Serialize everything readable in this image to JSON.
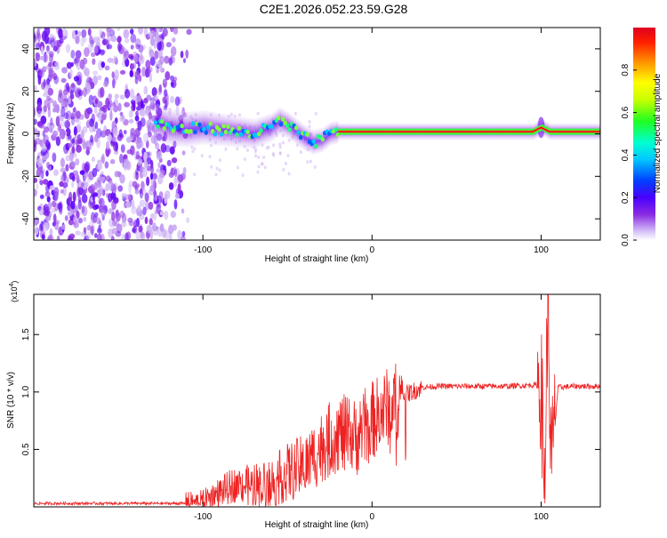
{
  "title": "C2E1.2026.052.23.59.G28",
  "chart_data": [
    {
      "type": "heatmap",
      "name": "spectrogram",
      "xlabel": "Height of straight line (km)",
      "ylabel": "Frequency (Hz)",
      "xlim": [
        -200,
        135
      ],
      "ylim": [
        -50,
        50
      ],
      "xticks": [
        -100,
        0,
        100
      ],
      "yticks": [
        -40,
        -20,
        0,
        20,
        40
      ],
      "colorbar": {
        "label": "Normalized spectral amplitude",
        "range": [
          0,
          1
        ],
        "ticks": [
          "0.0",
          "0.2",
          "0.4",
          "0.6",
          "0.8"
        ],
        "tick_values": [
          0,
          0.2,
          0.4,
          0.6,
          0.8
        ],
        "colors": [
          "#ffffff",
          "#c9a5f5",
          "#8a2be2",
          "#5a00ff",
          "#0000ff",
          "#00a0ff",
          "#00ffff",
          "#00ff80",
          "#40ff00",
          "#c0ff00",
          "#ffff00",
          "#ffa000",
          "#ff3000",
          "#e00000"
        ]
      },
      "signal_trace": {
        "x": [
          -130,
          -120,
          -110,
          -100,
          -90,
          -80,
          -70,
          -60,
          -55,
          -50,
          -45,
          -40,
          -35,
          -30,
          -25,
          -20,
          -10,
          0,
          10,
          20,
          40,
          60,
          80,
          95,
          100,
          105,
          120,
          135
        ],
        "y": [
          6,
          3,
          2,
          3,
          2,
          1,
          0,
          3,
          6,
          4,
          1,
          -2,
          -4,
          -3,
          0,
          1,
          1,
          1,
          1,
          1,
          1,
          1,
          1,
          1,
          3,
          1,
          1,
          1
        ]
      }
    },
    {
      "type": "line",
      "name": "snr",
      "xlabel": "Height of straight line (km)",
      "ylabel": "SNR (10 * v/v)",
      "scale_label": "(x10",
      "scale_exp": "4",
      "xlim": [
        -200,
        135
      ],
      "ylim": [
        0,
        1.85
      ],
      "xticks": [
        -100,
        0,
        100
      ],
      "yticks": [
        0.5,
        1.0,
        1.5
      ],
      "ytick_labels": [
        "0.5",
        "1.0",
        "1.5"
      ],
      "color": "#ee2222",
      "series": [
        {
          "name": "SNR",
          "x": [
            -200,
            -150,
            -110,
            -100,
            -90,
            -80,
            -70,
            -60,
            -50,
            -40,
            -30,
            -20,
            -10,
            0,
            10,
            20,
            30,
            40,
            60,
            80,
            95,
            100,
            102,
            104,
            106,
            110,
            120,
            135
          ],
          "y": [
            0.03,
            0.03,
            0.03,
            0.05,
            0.13,
            0.2,
            0.18,
            0.2,
            0.3,
            0.35,
            0.52,
            0.65,
            0.6,
            0.75,
            0.88,
            0.98,
            1.04,
            1.05,
            1.05,
            1.05,
            1.06,
            1.06,
            0.2,
            1.8,
            0.3,
            1.04,
            1.05,
            1.05
          ]
        }
      ]
    }
  ]
}
